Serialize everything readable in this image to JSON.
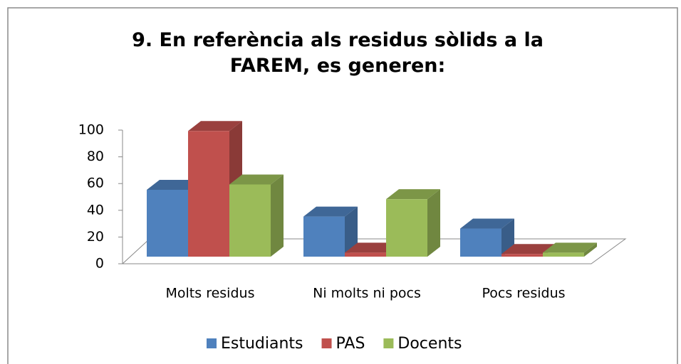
{
  "chart_data": {
    "type": "bar3d",
    "title": "9. En referència als residus sòlids a la FAREM, es generen:",
    "categories": [
      "Molts residus",
      "Ni molts ni pocs",
      "Pocs residus"
    ],
    "series": [
      {
        "name": "Estudiants",
        "color": "#4f81bd",
        "values": [
          50,
          30,
          21
        ]
      },
      {
        "name": "PAS",
        "color": "#c0504d",
        "values": [
          94,
          3,
          2
        ]
      },
      {
        "name": "Docents",
        "color": "#9bbb59",
        "values": [
          54,
          43,
          3
        ]
      }
    ],
    "ylim": [
      0,
      100
    ],
    "yticks": [
      0,
      20,
      40,
      60,
      80,
      100
    ],
    "legend": "bottom"
  }
}
